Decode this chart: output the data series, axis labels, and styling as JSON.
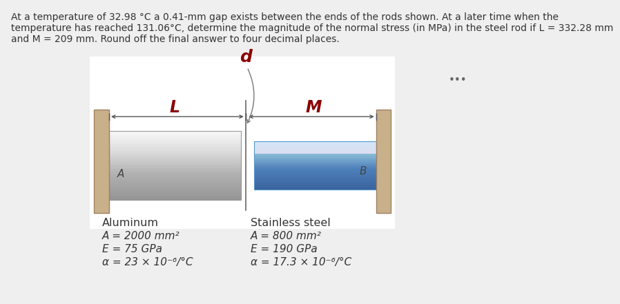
{
  "bg_color": "#efefef",
  "title_line1": "At a temperature of 32.98 °C a 0.41-mm gap exists between the ends of the rods shown. At a later time when the",
  "title_line2": "temperature has reached 131.06°C, determine the magnitude of the normal stress (in MPa) in the steel rod if L = 332.28 mm",
  "title_line3": "and M = 209 mm. Round off the final answer to four decimal places.",
  "label_d": "d",
  "label_L": "L",
  "label_M": "M",
  "label_A": "A",
  "label_B": "B",
  "ellipsis": "•••",
  "al_title": "Aluminum",
  "al_A": "A = 2000 mm²",
  "al_E": "E = 75 GPa",
  "al_alpha": "α = 23 × 10⁻⁶/°C",
  "ss_title": "Stainless steel",
  "ss_A": "A = 800 mm²",
  "ss_E": "E = 190 GPa",
  "ss_alpha": "α = 17.3 × 10⁻⁶/°C",
  "wall_color": "#c8b08a",
  "wall_edge_color": "#a08060",
  "al_rod_top": "#f8f8f8",
  "al_rod_mid": "#cccccc",
  "al_rod_bot": "#b0b0b0",
  "ss_rod_top": "#d8eef8",
  "ss_rod_mid": "#8abcd8",
  "ss_rod_bot": "#5090b8",
  "dark_red": "#8b0000",
  "text_color": "#333333",
  "dim_line_color": "#555555",
  "gap_line_color": "#666666",
  "white_bg": "#ffffff"
}
